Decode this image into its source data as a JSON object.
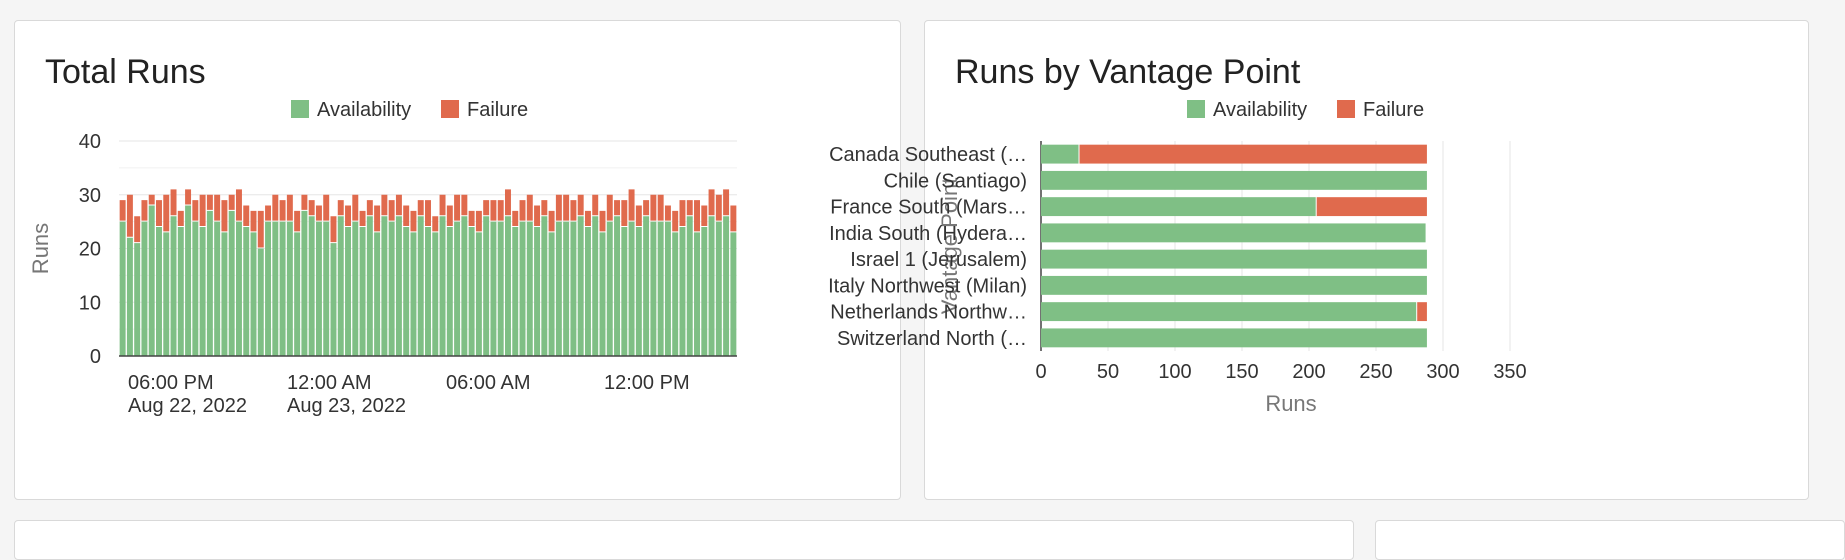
{
  "colors": {
    "availability": "#7fbf85",
    "failure": "#e06a4d",
    "grid": "#e6e6e6",
    "axis": "#333333",
    "label": "#777777"
  },
  "total_runs": {
    "title": "Total Runs",
    "chart_data": {
      "type": "bar",
      "stacked": true,
      "title": "Total Runs",
      "ylabel": "Runs",
      "ylim": [
        0,
        40
      ],
      "yticks": [
        0,
        10,
        20,
        30,
        40
      ],
      "grid": true,
      "legend": "top-center",
      "x_tick_labels": [
        {
          "time": "06:00 PM",
          "date": "Aug 22, 2022"
        },
        {
          "time": "12:00 AM",
          "date": "Aug 23, 2022"
        },
        {
          "time": "06:00 AM",
          "date": ""
        },
        {
          "time": "12:00 PM",
          "date": ""
        }
      ],
      "series": [
        {
          "name": "Availability",
          "values": [
            25,
            22,
            21,
            25,
            28,
            24,
            23,
            26,
            24,
            28,
            25,
            24,
            27,
            25,
            23,
            27,
            25,
            24,
            23,
            20,
            25,
            25,
            25,
            25,
            23,
            27,
            26,
            25,
            25,
            21,
            26,
            24,
            25,
            24,
            26,
            23,
            26,
            25,
            26,
            24,
            23,
            26,
            24,
            23,
            26,
            24,
            25,
            26,
            24,
            23,
            26,
            25,
            25,
            26,
            24,
            25,
            25,
            24,
            26,
            23,
            25,
            25,
            25,
            26,
            24,
            26,
            23,
            25,
            26,
            24,
            25,
            24,
            26,
            25,
            25,
            25,
            23,
            24,
            26,
            23,
            24,
            26,
            25,
            26,
            23
          ]
        },
        {
          "name": "Failure",
          "values": [
            4,
            8,
            5,
            4,
            2,
            5,
            7,
            5,
            3,
            3,
            4,
            6,
            3,
            5,
            6,
            3,
            6,
            4,
            4,
            7,
            3,
            5,
            4,
            5,
            4,
            3,
            3,
            3,
            5,
            5,
            3,
            4,
            5,
            3,
            3,
            5,
            4,
            4,
            4,
            4,
            4,
            3,
            5,
            3,
            4,
            4,
            5,
            4,
            3,
            4,
            3,
            4,
            4,
            5,
            3,
            4,
            5,
            4,
            3,
            4,
            5,
            5,
            4,
            4,
            3,
            4,
            4,
            5,
            3,
            5,
            6,
            4,
            3,
            5,
            5,
            3,
            4,
            5,
            3,
            6,
            4,
            5,
            5,
            5,
            5
          ]
        }
      ]
    }
  },
  "runs_by_vp": {
    "title": "Runs by Vantage Point",
    "chart_data": {
      "type": "bar",
      "orientation": "horizontal",
      "stacked": true,
      "title": "Runs by Vantage Point",
      "xlabel": "Runs",
      "ylabel": "Vantage Point",
      "xlim": [
        0,
        350
      ],
      "xticks": [
        0,
        50,
        100,
        150,
        200,
        250,
        300,
        350
      ],
      "grid": true,
      "legend": "top-center",
      "categories": [
        "Canada Southeast (…",
        "Chile (Santiago)",
        "France South (Mars…",
        "India South (Hydera…",
        "Israel 1 (Jerusalem)",
        "Italy Northwest (Milan)",
        "Netherlands Northw…",
        "Switzerland North (…"
      ],
      "series": [
        {
          "name": "Availability",
          "values": [
            28,
            288,
            205,
            287,
            288,
            288,
            280,
            288
          ]
        },
        {
          "name": "Failure",
          "values": [
            260,
            0,
            83,
            0,
            0,
            0,
            8,
            0
          ]
        }
      ]
    }
  }
}
